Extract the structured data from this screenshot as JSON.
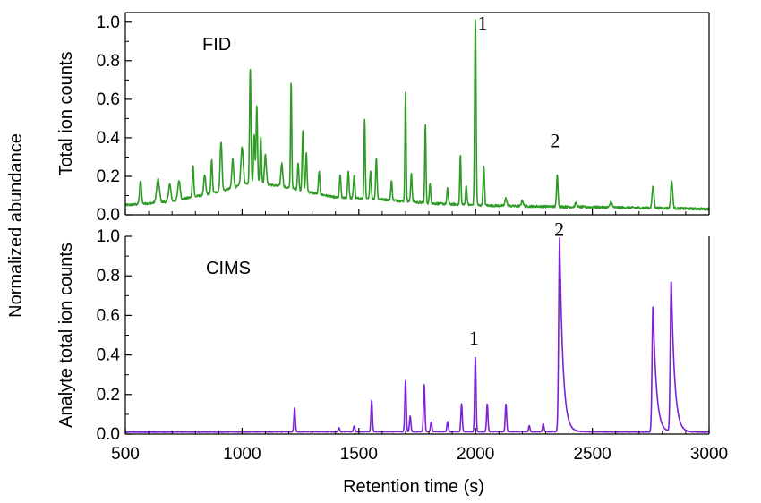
{
  "chart_data": {
    "type": "line",
    "ylabel_outer": "Normalized abundance",
    "xlabel": "Retention time (s)",
    "xlim": [
      500,
      3000
    ],
    "xticks": [
      500,
      1000,
      1500,
      2000,
      2500,
      3000
    ],
    "panels": [
      {
        "id": "fid",
        "label": "FID",
        "ylabel": "Total ion counts",
        "ylim": [
          0,
          1.05
        ],
        "yticks": [
          "0.0",
          "0.2",
          "0.4",
          "0.6",
          "0.8",
          "1.0"
        ],
        "color": "#2e9b24",
        "baseline": [
          [
            500,
            0.05
          ],
          [
            700,
            0.07
          ],
          [
            900,
            0.12
          ],
          [
            1050,
            0.17
          ],
          [
            1200,
            0.14
          ],
          [
            1400,
            0.09
          ],
          [
            1600,
            0.08
          ],
          [
            1800,
            0.06
          ],
          [
            2000,
            0.05
          ],
          [
            2200,
            0.045
          ],
          [
            2500,
            0.04
          ],
          [
            2800,
            0.035
          ],
          [
            3000,
            0.03
          ]
        ],
        "noise": 0.012,
        "peaks": [
          [
            565,
            0.12,
            4
          ],
          [
            640,
            0.12,
            6
          ],
          [
            690,
            0.09,
            5
          ],
          [
            730,
            0.1,
            5
          ],
          [
            790,
            0.17,
            3
          ],
          [
            840,
            0.1,
            4
          ],
          [
            870,
            0.18,
            3
          ],
          [
            910,
            0.26,
            4
          ],
          [
            960,
            0.15,
            4
          ],
          [
            1000,
            0.2,
            5
          ],
          [
            1035,
            0.6,
            3
          ],
          [
            1052,
            0.25,
            3
          ],
          [
            1063,
            0.4,
            3
          ],
          [
            1080,
            0.24,
            3
          ],
          [
            1100,
            0.15,
            4
          ],
          [
            1170,
            0.12,
            4
          ],
          [
            1210,
            0.56,
            2.5
          ],
          [
            1240,
            0.14,
            3
          ],
          [
            1260,
            0.31,
            3
          ],
          [
            1275,
            0.2,
            3
          ],
          [
            1330,
            0.12,
            3
          ],
          [
            1420,
            0.12,
            3
          ],
          [
            1455,
            0.14,
            3
          ],
          [
            1480,
            0.12,
            3
          ],
          [
            1525,
            0.42,
            2.5
          ],
          [
            1550,
            0.15,
            3
          ],
          [
            1575,
            0.22,
            3
          ],
          [
            1640,
            0.1,
            3
          ],
          [
            1700,
            0.56,
            2.5
          ],
          [
            1725,
            0.15,
            3
          ],
          [
            1785,
            0.41,
            2.5
          ],
          [
            1805,
            0.1,
            3
          ],
          [
            1880,
            0.08,
            3
          ],
          [
            1935,
            0.26,
            2.5
          ],
          [
            1960,
            0.1,
            3
          ],
          [
            1999,
            0.98,
            3
          ],
          [
            2035,
            0.2,
            3
          ],
          [
            2130,
            0.04,
            4
          ],
          [
            2200,
            0.03,
            4
          ],
          [
            2350,
            0.17,
            3
          ],
          [
            2430,
            0.02,
            4
          ],
          [
            2580,
            0.03,
            4
          ],
          [
            2760,
            0.11,
            4
          ],
          [
            2840,
            0.14,
            4
          ]
        ],
        "annotations": [
          {
            "text": "1",
            "x": 2030,
            "y": 0.98
          },
          {
            "text": "2",
            "x": 2340,
            "y": 0.37
          }
        ]
      },
      {
        "id": "cims",
        "label": "CIMS",
        "ylabel": "Analyte total ion counts",
        "ylim": [
          0,
          1.0
        ],
        "yticks": [
          "0.0",
          "0.2",
          "0.4",
          "0.6",
          "0.8",
          "1.0"
        ],
        "color": "#7b22d6",
        "baseline": [
          [
            500,
            0.01
          ],
          [
            1500,
            0.012
          ],
          [
            2300,
            0.012
          ],
          [
            3000,
            0.01
          ]
        ],
        "noise": 0.003,
        "peaks": [
          [
            1225,
            0.12,
            3
          ],
          [
            1415,
            0.02,
            3
          ],
          [
            1480,
            0.03,
            3
          ],
          [
            1555,
            0.16,
            3
          ],
          [
            1700,
            0.26,
            3
          ],
          [
            1720,
            0.08,
            3
          ],
          [
            1780,
            0.24,
            3
          ],
          [
            1810,
            0.05,
            3
          ],
          [
            1880,
            0.05,
            3
          ],
          [
            1940,
            0.14,
            3
          ],
          [
            1999,
            0.38,
            3
          ],
          [
            2050,
            0.14,
            3
          ],
          [
            2130,
            0.14,
            3
          ],
          [
            2230,
            0.03,
            3
          ],
          [
            2290,
            0.04,
            3
          ],
          [
            2360,
            0.98,
            4
          ],
          [
            2760,
            0.65,
            4
          ],
          [
            2838,
            0.78,
            4
          ]
        ],
        "annotations": [
          {
            "text": "1",
            "x": 1993,
            "y": 0.47
          },
          {
            "text": "2",
            "x": 2358,
            "y": 1.02
          }
        ]
      }
    ]
  }
}
